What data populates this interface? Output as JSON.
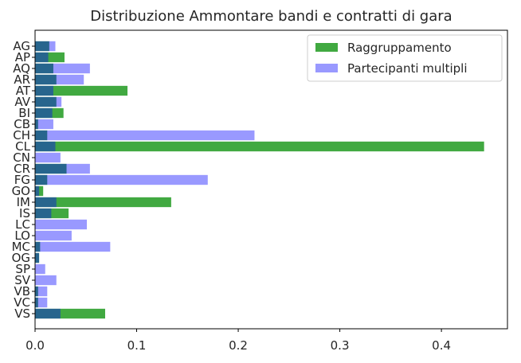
{
  "chart_data": {
    "type": "bar",
    "orientation": "horizontal",
    "title": "Distribuzione Ammontare bandi e contratti di gara",
    "xlabel": "",
    "ylabel": "",
    "xlim": [
      0,
      0.465
    ],
    "xticks": [
      "0.0",
      "0.1",
      "0.2",
      "0.3",
      "0.4"
    ],
    "grid": false,
    "legend_position": "top-right",
    "categories": [
      "AG",
      "AP",
      "AQ",
      "AR",
      "AT",
      "AV",
      "BI",
      "CB",
      "CH",
      "CL",
      "CN",
      "CR",
      "FG",
      "GO",
      "IM",
      "IS",
      "LC",
      "LO",
      "MC",
      "OG",
      "SP",
      "SV",
      "VB",
      "VC",
      "VS"
    ],
    "series": [
      {
        "name": "Raggruppamento",
        "color": "#2ca02c",
        "alpha": 0.9,
        "values": [
          0.014,
          0.029,
          0.018,
          0.021,
          0.091,
          0.021,
          0.028,
          0.003,
          0.012,
          0.442,
          0.0,
          0.031,
          0.012,
          0.008,
          0.134,
          0.033,
          0.0,
          0.0,
          0.005,
          0.004,
          0.0,
          0.0,
          0.003,
          0.003,
          0.069
        ]
      },
      {
        "name": "Partecipanti multipli",
        "color": "#0000ff",
        "alpha": 0.4,
        "values": [
          0.02,
          0.013,
          0.054,
          0.048,
          0.018,
          0.026,
          0.017,
          0.018,
          0.216,
          0.02,
          0.025,
          0.054,
          0.17,
          0.004,
          0.021,
          0.016,
          0.051,
          0.036,
          0.074,
          0.004,
          0.01,
          0.021,
          0.012,
          0.012,
          0.025
        ]
      }
    ]
  }
}
